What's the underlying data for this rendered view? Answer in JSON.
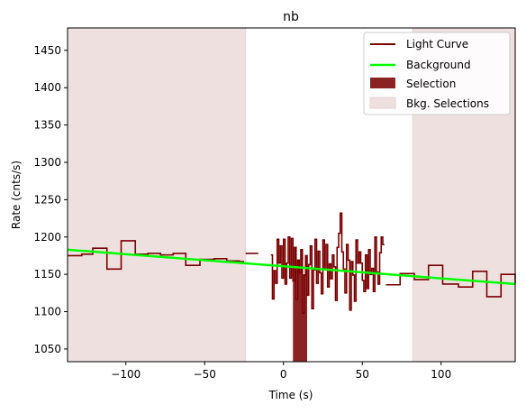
{
  "chart_data": {
    "type": "line",
    "title": "nb",
    "xlabel": "Time (s)",
    "ylabel": "Rate (cnts/s)",
    "xlim": [
      -137,
      147
    ],
    "ylim": [
      1033,
      1480
    ],
    "xticks": [
      -100,
      -50,
      0,
      50,
      100
    ],
    "yticks": [
      1050,
      1100,
      1150,
      1200,
      1250,
      1300,
      1350,
      1400,
      1450
    ],
    "grid": false,
    "legend_position": "top-right",
    "legend": [
      "Light Curve",
      "Background",
      "Selection",
      "Bkg. Selections"
    ],
    "colors": {
      "light_curve": "#7a0000",
      "background": "#00ff00",
      "selection": "#8b2323",
      "bkg_selection": "#efe0e0"
    },
    "series": [
      {
        "name": "Light Curve",
        "kind": "step",
        "points": [
          [
            -137,
            1175
          ],
          [
            -128,
            1177
          ],
          [
            -121,
            1185
          ],
          [
            -112,
            1157
          ],
          [
            -103,
            1195
          ],
          [
            -94,
            1177
          ],
          [
            -86,
            1178
          ],
          [
            -78,
            1176
          ],
          [
            -70,
            1178
          ],
          [
            -62,
            1162
          ],
          [
            -53,
            1170
          ],
          [
            -44,
            1171
          ],
          [
            -36,
            1168
          ],
          [
            -28,
            1167
          ],
          [
            -25,
            null
          ],
          [
            -24,
            1178
          ],
          [
            -16,
            null
          ],
          [
            -8,
            1176
          ],
          [
            -7,
            1117
          ],
          [
            -6,
            1155
          ],
          [
            -5,
            1138
          ],
          [
            -4,
            1197
          ],
          [
            -3,
            1165
          ],
          [
            -2,
            1188
          ],
          [
            -1,
            1145
          ],
          [
            0,
            1197
          ],
          [
            1,
            1137
          ],
          [
            2,
            1165
          ],
          [
            3,
            1200
          ],
          [
            4,
            1145
          ],
          [
            5,
            1198
          ],
          [
            6,
            1141
          ],
          [
            7,
            1186
          ],
          [
            8,
            1117
          ],
          [
            9,
            1169
          ],
          [
            10,
            1152
          ],
          [
            11,
            1183
          ],
          [
            12,
            1098
          ],
          [
            13,
            1149
          ],
          [
            14,
            1175
          ],
          [
            15,
            1122
          ],
          [
            16,
            1163
          ],
          [
            17,
            1188
          ],
          [
            18,
            1104
          ],
          [
            19,
            1156
          ],
          [
            20,
            1197
          ],
          [
            21,
            1138
          ],
          [
            22,
            1181
          ],
          [
            23,
            1152
          ],
          [
            24,
            1124
          ],
          [
            25,
            1196
          ],
          [
            26,
            1156
          ],
          [
            27,
            1190
          ],
          [
            28,
            1133
          ],
          [
            29,
            1164
          ],
          [
            30,
            1144
          ],
          [
            31,
            1176
          ],
          [
            32,
            1160
          ],
          [
            33,
            1115
          ],
          [
            34,
            1186
          ],
          [
            35,
            1205
          ],
          [
            36,
            1232
          ],
          [
            37,
            1180
          ],
          [
            38,
            1157
          ],
          [
            39,
            1125
          ],
          [
            40,
            1190
          ],
          [
            41,
            1169
          ],
          [
            42,
            1102
          ],
          [
            43,
            1167
          ],
          [
            44,
            1149
          ],
          [
            45,
            1114
          ],
          [
            46,
            1196
          ],
          [
            47,
            1165
          ],
          [
            48,
            1180
          ],
          [
            49,
            1165
          ],
          [
            50,
            1142
          ],
          [
            51,
            1127
          ],
          [
            52,
            1176
          ],
          [
            53,
            1131
          ],
          [
            54,
            1183
          ],
          [
            55,
            1150
          ],
          [
            56,
            1158
          ],
          [
            57,
            1127
          ],
          [
            58,
            1200
          ],
          [
            59,
            1153
          ],
          [
            60,
            1137
          ],
          [
            61,
            1179
          ],
          [
            62,
            1200
          ],
          [
            63,
            1190
          ],
          [
            64,
            null
          ],
          [
            65,
            1136
          ],
          [
            74,
            1151
          ],
          [
            83,
            1143
          ],
          [
            92,
            1162
          ],
          [
            101,
            1137
          ],
          [
            111,
            1133
          ],
          [
            120,
            1154
          ],
          [
            129,
            1120
          ],
          [
            138,
            1150
          ],
          [
            147,
            1138
          ]
        ]
      },
      {
        "name": "Background",
        "kind": "line",
        "points": [
          [
            -137,
            1183
          ],
          [
            147,
            1137
          ]
        ]
      }
    ],
    "selection": [
      6,
      15
    ],
    "bkg_selections": [
      [
        -137,
        -24
      ],
      [
        82,
        147
      ]
    ]
  }
}
